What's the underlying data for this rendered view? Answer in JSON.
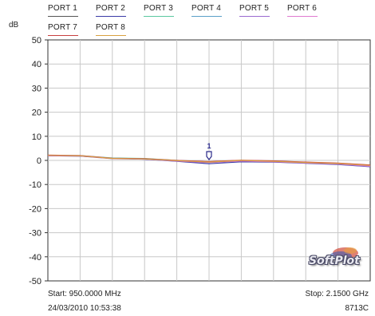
{
  "legend": [
    {
      "label": "PORT 1",
      "color": "#555555"
    },
    {
      "label": "PORT 2",
      "color": "#3a3aa6"
    },
    {
      "label": "PORT 3",
      "color": "#5bc8a0"
    },
    {
      "label": "PORT 4",
      "color": "#5aa0c8"
    },
    {
      "label": "PORT 5",
      "color": "#9a6ad0"
    },
    {
      "label": "PORT 6",
      "color": "#e07ad0"
    },
    {
      "label": "PORT 7",
      "color": "#c84040"
    },
    {
      "label": "PORT 8",
      "color": "#d9a040"
    }
  ],
  "y_unit": "dB",
  "footer": {
    "start": "Start: 950.0000 MHz",
    "stop": "Stop: 2.1500 GHz",
    "datetime": "24/03/2010 10:53:38",
    "model": "8713C"
  },
  "watermark": "SoftPlot",
  "chart_data": {
    "type": "line",
    "xlim": [
      950,
      2150
    ],
    "xunit": "MHz",
    "ylim": [
      -50,
      50
    ],
    "yticks": [
      50,
      40,
      30,
      20,
      10,
      0,
      -10,
      -20,
      -30,
      -40,
      -50
    ],
    "grid": true,
    "legend_position": "top",
    "marker": {
      "x": 1550,
      "y": 0,
      "label": "1"
    },
    "series": [
      {
        "name": "PORT 1",
        "color": "#555555",
        "x": [
          950,
          1070,
          1190,
          1310,
          1430,
          1550,
          1670,
          1790,
          1910,
          2030,
          2150
        ],
        "y": [
          2.0,
          1.9,
          0.8,
          0.6,
          -0.2,
          -0.8,
          -0.2,
          -0.5,
          -1.0,
          -1.5,
          -2.4
        ]
      },
      {
        "name": "PORT 2",
        "color": "#3a3aa6",
        "x": [
          950,
          1070,
          1190,
          1310,
          1430,
          1550,
          1670,
          1790,
          1910,
          2030,
          2150
        ],
        "y": [
          1.9,
          1.8,
          0.9,
          0.5,
          -0.4,
          -1.4,
          -0.6,
          -0.7,
          -1.2,
          -1.7,
          -2.6
        ]
      },
      {
        "name": "PORT 3",
        "color": "#5bc8a0",
        "x": [
          950,
          1070,
          1190,
          1310,
          1430,
          1550,
          1670,
          1790,
          1910,
          2030,
          2150
        ],
        "y": [
          2.1,
          2.0,
          1.0,
          0.8,
          0.0,
          -0.6,
          0.0,
          -0.3,
          -0.8,
          -1.2,
          -2.0
        ]
      },
      {
        "name": "PORT 4",
        "color": "#5aa0c8",
        "x": [
          950,
          1070,
          1190,
          1310,
          1430,
          1550,
          1670,
          1790,
          1910,
          2030,
          2150
        ],
        "y": [
          2.0,
          1.9,
          0.9,
          0.7,
          -0.1,
          -0.7,
          -0.1,
          -0.4,
          -0.9,
          -1.3,
          -2.2
        ]
      },
      {
        "name": "PORT 5",
        "color": "#9a6ad0",
        "x": [
          950,
          1070,
          1190,
          1310,
          1430,
          1550,
          1670,
          1790,
          1910,
          2030,
          2150
        ],
        "y": [
          1.9,
          1.8,
          0.7,
          0.5,
          -0.3,
          -0.9,
          -0.3,
          -0.6,
          -1.1,
          -1.6,
          -2.5
        ]
      },
      {
        "name": "PORT 6",
        "color": "#e07ad0",
        "x": [
          950,
          1070,
          1190,
          1310,
          1430,
          1550,
          1670,
          1790,
          1910,
          2030,
          2150
        ],
        "y": [
          2.0,
          1.9,
          0.8,
          0.6,
          -0.2,
          -0.8,
          -0.2,
          -0.5,
          -1.0,
          -1.4,
          -2.3
        ]
      },
      {
        "name": "PORT 7",
        "color": "#c84040",
        "x": [
          950,
          1070,
          1190,
          1310,
          1430,
          1550,
          1670,
          1790,
          1910,
          2030,
          2150
        ],
        "y": [
          2.2,
          2.0,
          0.9,
          0.7,
          0.0,
          -0.5,
          0.1,
          -0.2,
          -0.7,
          -1.1,
          -1.9
        ]
      },
      {
        "name": "PORT 8",
        "color": "#d9a040",
        "x": [
          950,
          1070,
          1190,
          1310,
          1430,
          1550,
          1670,
          1790,
          1910,
          2030,
          2150
        ],
        "y": [
          2.1,
          1.9,
          0.8,
          0.6,
          -0.1,
          -0.7,
          0.0,
          -0.4,
          -0.9,
          -1.3,
          -2.1
        ]
      }
    ]
  }
}
